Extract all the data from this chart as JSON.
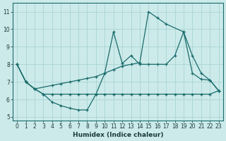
{
  "xlabel": "Humidex (Indice chaleur)",
  "background_color": "#cceaea",
  "line_color": "#1a6b6b",
  "grid_color": "#aad4d4",
  "xlim": [
    -0.5,
    23.5
  ],
  "ylim": [
    4.8,
    11.5
  ],
  "yticks": [
    5,
    6,
    7,
    8,
    9,
    10,
    11
  ],
  "xticks": [
    0,
    1,
    2,
    3,
    4,
    5,
    6,
    7,
    8,
    9,
    10,
    11,
    12,
    13,
    14,
    15,
    16,
    17,
    18,
    19,
    20,
    21,
    22,
    23
  ],
  "series1_x": [
    0,
    1,
    2,
    3,
    4,
    5,
    6,
    7,
    8,
    9,
    10,
    11,
    12,
    13,
    14,
    15,
    16,
    17,
    18,
    19,
    20,
    21,
    22,
    23
  ],
  "series1_y": [
    8.0,
    7.0,
    6.6,
    6.3,
    5.85,
    5.65,
    5.5,
    5.4,
    5.4,
    6.3,
    7.5,
    9.85,
    8.05,
    8.5,
    8.0,
    8.0,
    8.0,
    8.0,
    8.5,
    9.85,
    7.5,
    7.15,
    7.1,
    6.5
  ],
  "series2_x": [
    0,
    1,
    2,
    3,
    4,
    5,
    6,
    7,
    8,
    9,
    10,
    11,
    12,
    13,
    14,
    15,
    16,
    17,
    18,
    19,
    20,
    21,
    22,
    23
  ],
  "series2_y": [
    8.0,
    7.0,
    6.6,
    6.3,
    6.3,
    6.3,
    6.3,
    6.3,
    6.3,
    6.3,
    6.3,
    6.3,
    6.3,
    6.3,
    6.3,
    6.3,
    6.3,
    6.3,
    6.3,
    6.3,
    6.3,
    6.3,
    6.3,
    6.5
  ],
  "series3_x": [
    0,
    1,
    2,
    4,
    5,
    6,
    7,
    8,
    9,
    10,
    11,
    12,
    13,
    14,
    15,
    16,
    17,
    19,
    20,
    21,
    22,
    23
  ],
  "series3_y": [
    8.0,
    7.0,
    6.6,
    6.8,
    6.9,
    7.0,
    7.1,
    7.2,
    7.3,
    7.5,
    7.7,
    7.9,
    8.0,
    8.1,
    11.0,
    10.65,
    10.3,
    9.85,
    8.5,
    7.5,
    7.1,
    6.5
  ]
}
